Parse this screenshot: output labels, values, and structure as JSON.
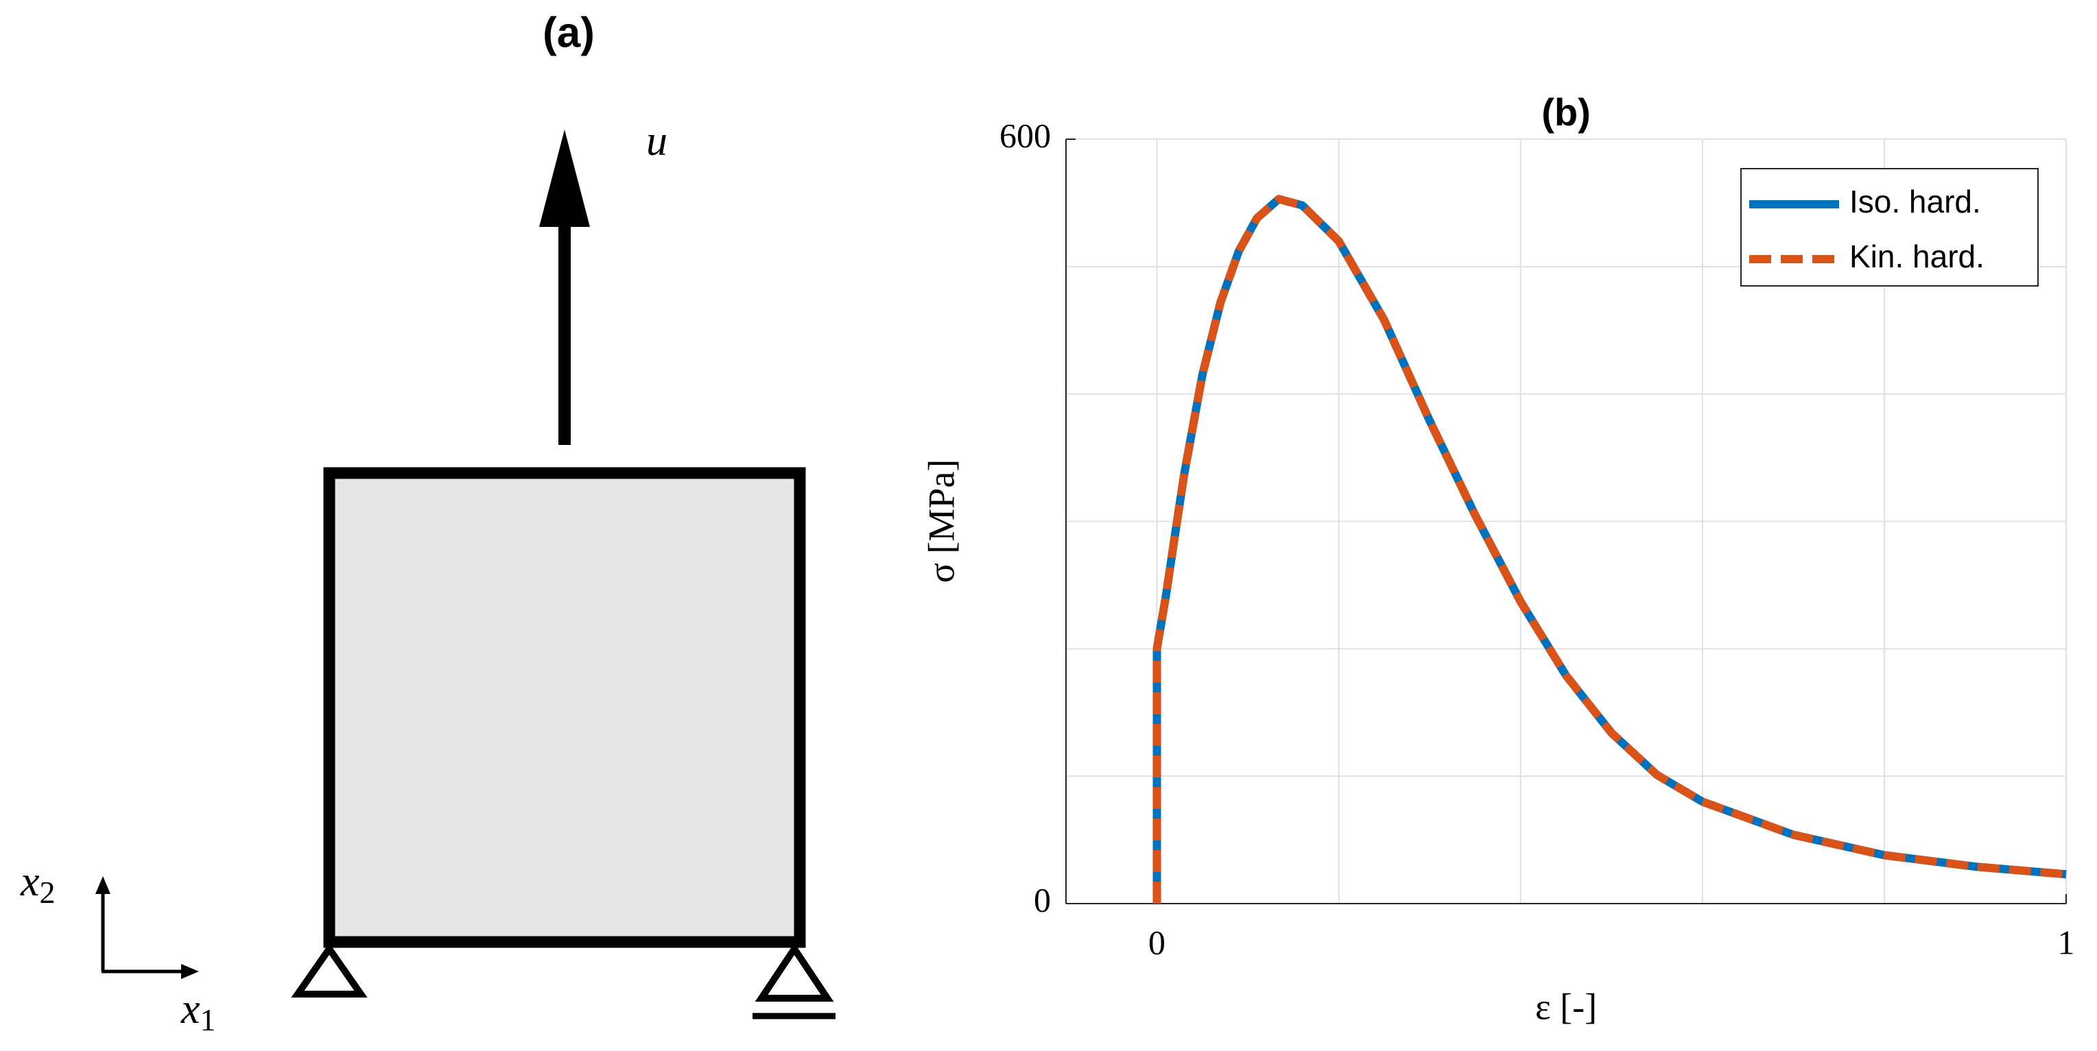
{
  "diagram": {
    "title": "(a)",
    "load_label": "u",
    "axis_labels": [
      {
        "base": "x",
        "sub": "2"
      },
      {
        "base": "x",
        "sub": "1"
      }
    ]
  },
  "chart_data": {
    "type": "line",
    "title": "(b)",
    "x_label": "ε [-]",
    "y_label": "σ [MPa]",
    "x": [
      0,
      0,
      0.01,
      0.02,
      0.03,
      0.05,
      0.07,
      0.09,
      0.11,
      0.134,
      0.16,
      0.2,
      0.25,
      0.3,
      0.35,
      0.4,
      0.45,
      0.5,
      0.55,
      0.6,
      0.7,
      0.8,
      0.9,
      1.0
    ],
    "series": [
      {
        "name": "Iso. hard.",
        "color": "#0072bd",
        "dashed": false,
        "values": [
          0,
          200,
          242,
          290,
          337,
          415,
          472,
          512,
          538,
          553,
          548,
          520,
          458,
          379,
          305,
          237,
          179,
          134,
          101,
          80,
          54,
          38,
          29,
          23
        ]
      },
      {
        "name": "Kin. hard.",
        "color": "#d95319",
        "dashed": true,
        "values": [
          0,
          200,
          242,
          290,
          337,
          415,
          472,
          512,
          538,
          553,
          548,
          520,
          458,
          379,
          305,
          237,
          179,
          134,
          101,
          80,
          54,
          38,
          29,
          23
        ]
      }
    ],
    "xlim": [
      -0.1,
      1
    ],
    "ylim": [
      0,
      600
    ],
    "xticks": [
      0,
      1
    ],
    "yticks": [
      0,
      600
    ],
    "xgrid": [
      0,
      0.2,
      0.4,
      0.6,
      0.8,
      1
    ],
    "ygrid": [
      0,
      100,
      200,
      300,
      400,
      500,
      600
    ],
    "grid": true,
    "legend": "northeast"
  }
}
